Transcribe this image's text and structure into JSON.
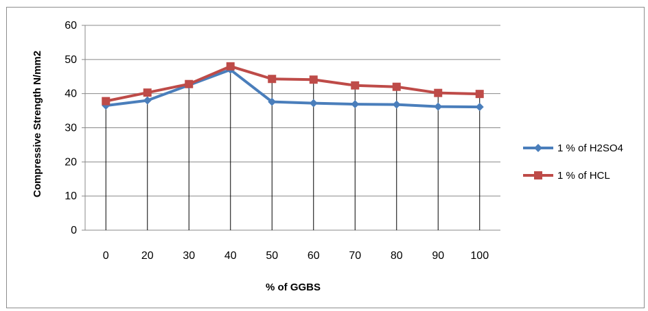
{
  "chart_data": {
    "type": "line",
    "categories": [
      "0",
      "20",
      "30",
      "40",
      "50",
      "60",
      "70",
      "80",
      "90",
      "100"
    ],
    "series": [
      {
        "name": "1 % of H2SO4",
        "color": "#4a7ebb",
        "marker": "diamond",
        "values": [
          36.5,
          38,
          42.5,
          47,
          37.6,
          37.2,
          36.9,
          36.8,
          36.2,
          36.1
        ]
      },
      {
        "name": "1 % of HCL",
        "color": "#be4b48",
        "marker": "square",
        "values": [
          37.8,
          40.3,
          42.8,
          48,
          44.3,
          44.1,
          42.4,
          42,
          40.2,
          39.9
        ]
      }
    ],
    "xlabel": "% of GGBS",
    "ylabel": "Compressive Strength N/mm2",
    "ylim": [
      0,
      60
    ],
    "yticks": [
      0,
      10,
      20,
      30,
      40,
      50,
      60
    ],
    "grid": "horizontal major gridlines plus vertical drop lines at each category",
    "legend": "right"
  }
}
